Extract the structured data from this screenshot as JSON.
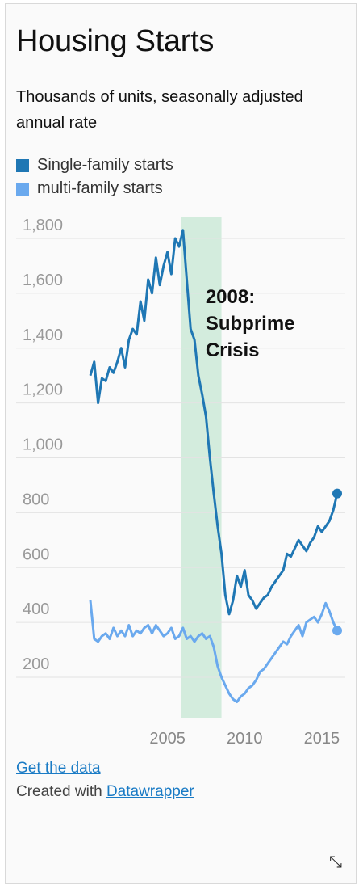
{
  "header": {
    "title": "Housing Starts",
    "subtitle": "Thousands of units, seasonally adjusted annual rate"
  },
  "footer": {
    "get_data": "Get the data",
    "created_with": "Created with ",
    "datawrapper": "Datawrapper"
  },
  "icons": {
    "resize": "resize-icon"
  },
  "colors": {
    "single": "#1f77b4",
    "multi": "#6aa9ee",
    "highlight": "#d3ecdd"
  },
  "chart_data": {
    "type": "line",
    "title": "Housing Starts",
    "ylim": [
      0,
      1850
    ],
    "xlim": [
      2000.0,
      2016.0
    ],
    "y_ticks": [
      1800,
      1600,
      1400,
      1200,
      1000,
      800,
      600,
      400,
      200
    ],
    "y_tick_labels": [
      "1,800",
      "1,600",
      "1,400",
      "1,200",
      "1,000",
      "800",
      "600",
      "400",
      "200"
    ],
    "x_ticks": [
      2005,
      2010,
      2015
    ],
    "x_tick_labels": [
      "2005",
      "2010",
      "2015"
    ],
    "grid": true,
    "legend_position": "top",
    "annotation": {
      "text_lines": [
        "2008:",
        "Subprime",
        "Crisis"
      ],
      "band": [
        2005.9,
        2008.5
      ]
    },
    "series": [
      {
        "name": "Single-family starts",
        "color": "#1f77b4",
        "x": [
          2000.0,
          2000.25,
          2000.5,
          2000.75,
          2001.0,
          2001.25,
          2001.5,
          2001.75,
          2002.0,
          2002.25,
          2002.5,
          2002.75,
          2003.0,
          2003.25,
          2003.5,
          2003.75,
          2004.0,
          2004.25,
          2004.5,
          2004.75,
          2005.0,
          2005.25,
          2005.5,
          2005.75,
          2006.0,
          2006.25,
          2006.5,
          2006.75,
          2007.0,
          2007.25,
          2007.5,
          2007.75,
          2008.0,
          2008.25,
          2008.5,
          2008.75,
          2009.0,
          2009.25,
          2009.5,
          2009.75,
          2010.0,
          2010.25,
          2010.5,
          2010.75,
          2011.0,
          2011.25,
          2011.5,
          2011.75,
          2012.0,
          2012.25,
          2012.5,
          2012.75,
          2013.0,
          2013.25,
          2013.5,
          2013.75,
          2014.0,
          2014.25,
          2014.5,
          2014.75,
          2015.0,
          2015.25,
          2015.5,
          2015.75,
          2016.0
        ],
        "values": [
          1250,
          1300,
          1150,
          1240,
          1230,
          1280,
          1260,
          1300,
          1350,
          1280,
          1380,
          1420,
          1400,
          1520,
          1450,
          1600,
          1550,
          1680,
          1580,
          1650,
          1700,
          1620,
          1750,
          1720,
          1780,
          1600,
          1420,
          1380,
          1250,
          1180,
          1100,
          950,
          820,
          700,
          600,
          450,
          380,
          430,
          520,
          480,
          540,
          450,
          430,
          400,
          420,
          440,
          450,
          480,
          500,
          520,
          540,
          600,
          590,
          620,
          650,
          630,
          610,
          640,
          660,
          700,
          680,
          700,
          720,
          760,
          820
        ]
      },
      {
        "name": "multi-family starts",
        "color": "#6aa9ee",
        "x": [
          2000.0,
          2000.25,
          2000.5,
          2000.75,
          2001.0,
          2001.25,
          2001.5,
          2001.75,
          2002.0,
          2002.25,
          2002.5,
          2002.75,
          2003.0,
          2003.25,
          2003.5,
          2003.75,
          2004.0,
          2004.25,
          2004.5,
          2004.75,
          2005.0,
          2005.25,
          2005.5,
          2005.75,
          2006.0,
          2006.25,
          2006.5,
          2006.75,
          2007.0,
          2007.25,
          2007.5,
          2007.75,
          2008.0,
          2008.25,
          2008.5,
          2008.75,
          2009.0,
          2009.25,
          2009.5,
          2009.75,
          2010.0,
          2010.25,
          2010.5,
          2010.75,
          2011.0,
          2011.25,
          2011.5,
          2011.75,
          2012.0,
          2012.25,
          2012.5,
          2012.75,
          2013.0,
          2013.25,
          2013.5,
          2013.75,
          2014.0,
          2014.25,
          2014.5,
          2014.75,
          2015.0,
          2015.25,
          2015.5,
          2015.75,
          2016.0
        ],
        "values": [
          430,
          290,
          280,
          300,
          310,
          290,
          330,
          300,
          320,
          300,
          340,
          300,
          320,
          310,
          330,
          340,
          310,
          340,
          320,
          300,
          310,
          330,
          290,
          300,
          330,
          290,
          300,
          280,
          300,
          310,
          290,
          300,
          260,
          190,
          150,
          120,
          90,
          70,
          60,
          80,
          90,
          110,
          120,
          140,
          170,
          180,
          200,
          220,
          240,
          260,
          280,
          270,
          300,
          320,
          340,
          300,
          350,
          360,
          370,
          350,
          380,
          420,
          390,
          350,
          320
        ]
      }
    ]
  }
}
